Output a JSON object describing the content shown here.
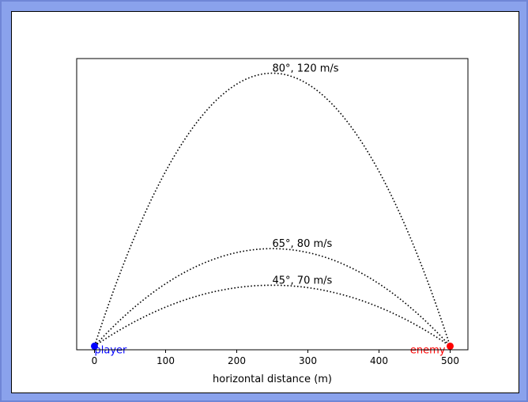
{
  "colors": {
    "window_background": "#8aa2ec",
    "canvas_background": "#ffffff",
    "trajectory": "#000000",
    "player": "#0000ff",
    "enemy": "#ff0000"
  },
  "chart_data": {
    "type": "line",
    "title": "",
    "xlabel": "horizontal distance (m)",
    "ylabel": "",
    "xlim": [
      -25,
      525
    ],
    "ylim": [
      -15,
      1180
    ],
    "xticks": [
      0,
      100,
      200,
      300,
      400,
      500
    ],
    "xtick_labels": [
      "0",
      "100",
      "200",
      "300",
      "400",
      "500"
    ],
    "y_axis_ticks_visible": false,
    "grid": false,
    "line_style": "dotted",
    "series": [
      {
        "name": "45°, 70 m/s",
        "label": "45°, 70 m/s",
        "x": [
          0,
          50,
          100,
          150,
          200,
          250,
          300,
          350,
          400,
          450,
          500
        ],
        "y": [
          0,
          90,
          160,
          210,
          240,
          250,
          240,
          210,
          160,
          90,
          0
        ]
      },
      {
        "name": "65°, 80 m/s",
        "label": "65°, 80 m/s",
        "x": [
          0,
          50,
          100,
          150,
          200,
          250,
          300,
          350,
          400,
          450,
          500
        ],
        "y": [
          0,
          144,
          256,
          336,
          384,
          400,
          384,
          336,
          256,
          144,
          0
        ]
      },
      {
        "name": "80°, 120 m/s",
        "label": "80°, 120 m/s",
        "x": [
          0,
          50,
          100,
          150,
          200,
          250,
          300,
          350,
          400,
          450,
          500
        ],
        "y": [
          0,
          403,
          717,
          941,
          1075,
          1120,
          1075,
          941,
          717,
          403,
          0
        ]
      }
    ],
    "points": [
      {
        "name": "player",
        "label": "player",
        "x": 0,
        "y": 0,
        "color": "#0000ff"
      },
      {
        "name": "enemy",
        "label": "enemy",
        "x": 500,
        "y": 0,
        "color": "#ff0000"
      }
    ]
  }
}
